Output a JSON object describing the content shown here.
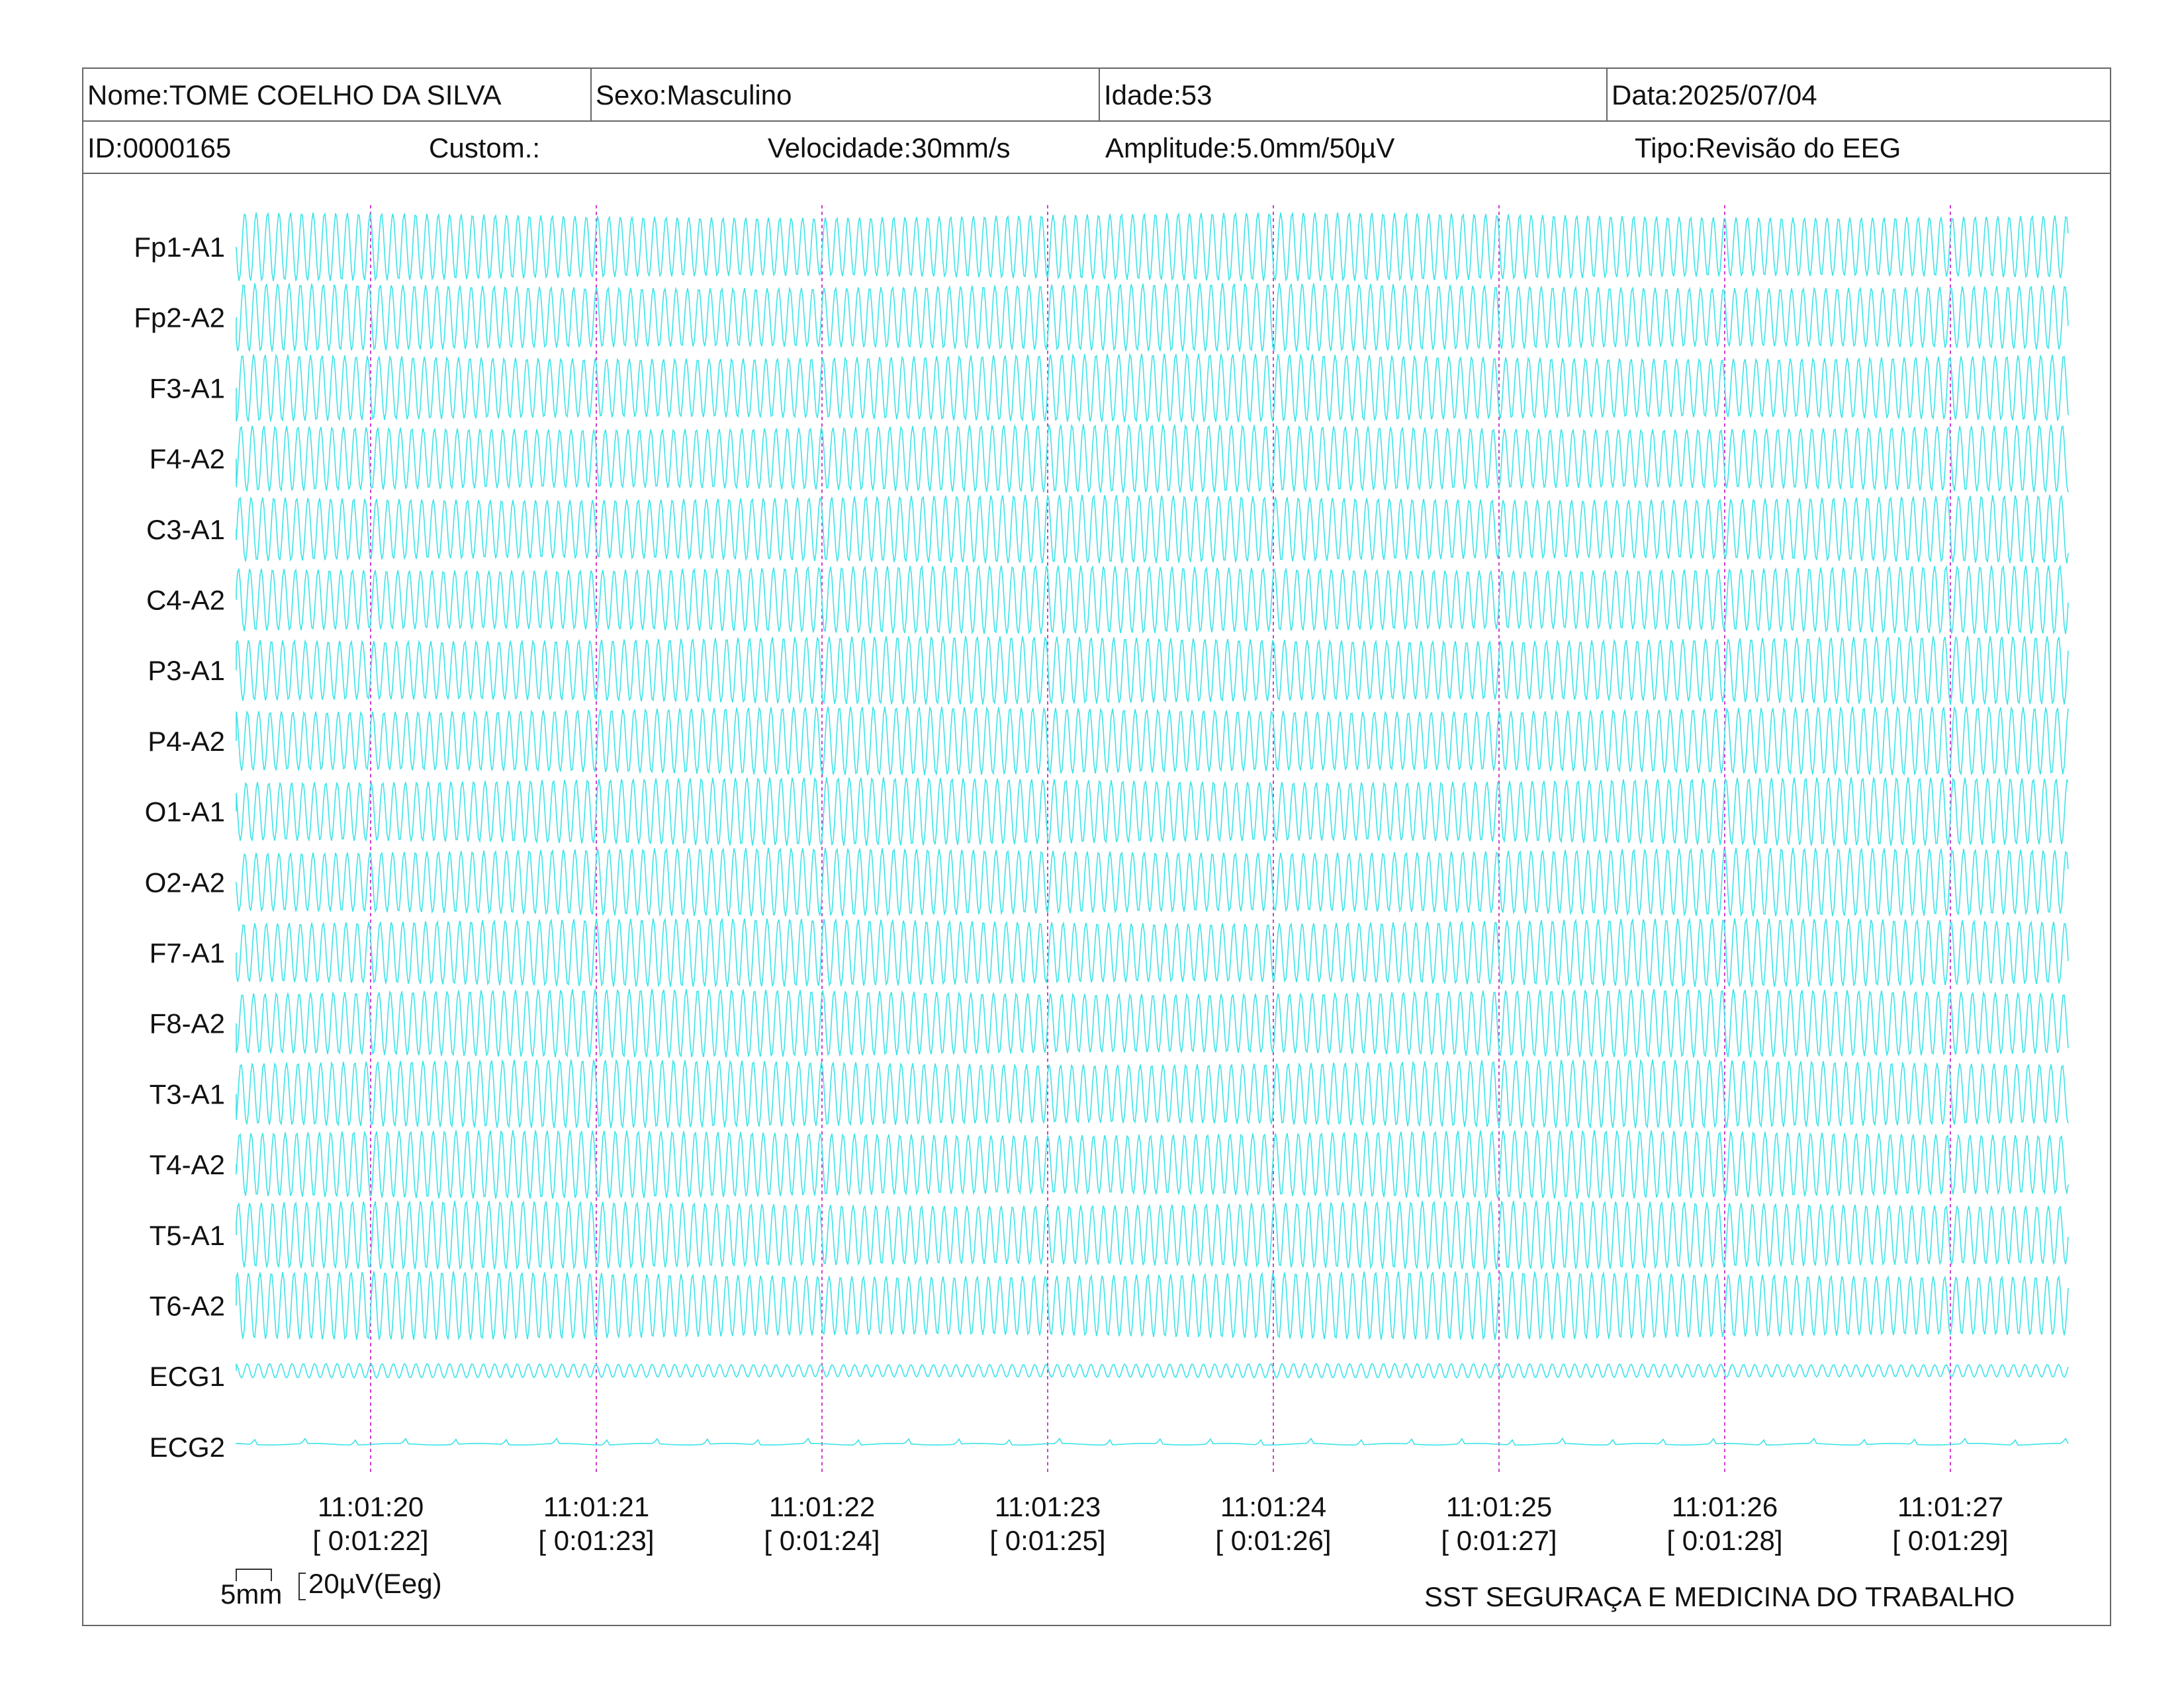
{
  "header": {
    "name": "Nome:TOME COELHO DA SILVA",
    "sex": "Sexo:Masculino",
    "age": "Idade:53",
    "date": "Data:2025/07/04",
    "id": "ID:0000165",
    "custom": "Custom.:",
    "speed": "Velocidade:30mm/s",
    "amplitude": "Amplitude:5.0mm/50µV",
    "type": "Tipo:Revisão do EEG"
  },
  "channels": [
    "Fp1-A1",
    "Fp2-A2",
    "F3-A1",
    "F4-A2",
    "C3-A1",
    "C4-A2",
    "P3-A1",
    "P4-A2",
    "O1-A1",
    "O2-A2",
    "F7-A1",
    "F8-A2",
    "T3-A1",
    "T4-A2",
    "T5-A1",
    "T6-A2",
    "ECG1",
    "ECG2"
  ],
  "time_ticks": [
    {
      "clock": "11:01:20",
      "elapsed": "[ 0:01:22]"
    },
    {
      "clock": "11:01:21",
      "elapsed": "[ 0:01:23]"
    },
    {
      "clock": "11:01:22",
      "elapsed": "[ 0:01:24]"
    },
    {
      "clock": "11:01:23",
      "elapsed": "[ 0:01:25]"
    },
    {
      "clock": "11:01:24",
      "elapsed": "[ 0:01:26]"
    },
    {
      "clock": "11:01:25",
      "elapsed": "[ 0:01:27]"
    },
    {
      "clock": "11:01:26",
      "elapsed": "[ 0:01:28]"
    },
    {
      "clock": "11:01:27",
      "elapsed": "[ 0:01:29]"
    }
  ],
  "scale": {
    "time": "5mm",
    "voltage": "20µV(Eeg)"
  },
  "footer": {
    "organization": "SST SEGURAÇA E MEDICINA DO TRABALHO"
  },
  "colors": {
    "trace": "#3de3e8",
    "second_marker": "#d040d0",
    "border": "#666666"
  }
}
